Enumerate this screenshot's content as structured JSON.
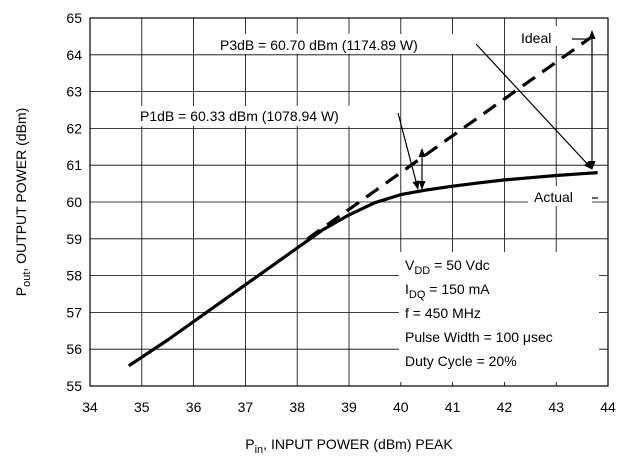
{
  "chart_data": {
    "type": "line",
    "xlabel": {
      "main": "P",
      "sub": "in",
      "rest": ", INPUT POWER (dBm) PEAK"
    },
    "ylabel": {
      "main": "P",
      "sub": "out",
      "rest": ", OUTPUT POWER (dBm)"
    },
    "xlim": [
      34,
      44
    ],
    "ylim": [
      55,
      65
    ],
    "xticks": [
      "34",
      "35",
      "36",
      "37",
      "38",
      "39",
      "40",
      "41",
      "42",
      "43",
      "44"
    ],
    "yticks": [
      "55",
      "56",
      "57",
      "58",
      "59",
      "60",
      "61",
      "62",
      "63",
      "64",
      "65"
    ],
    "grid": true,
    "series": [
      {
        "name": "Actual",
        "style": "solid",
        "color": "#000000",
        "x": [
          34.75,
          35.5,
          36.3,
          37.1,
          37.9,
          38.5,
          39.0,
          39.5,
          40.0,
          40.5,
          41.0,
          41.5,
          42.0,
          42.5,
          43.0,
          43.5,
          43.8
        ],
        "y": [
          55.55,
          56.25,
          57.05,
          57.85,
          58.65,
          59.25,
          59.65,
          59.98,
          60.2,
          60.33,
          60.43,
          60.52,
          60.6,
          60.66,
          60.72,
          60.77,
          60.8
        ]
      },
      {
        "name": "Ideal",
        "style": "dashed",
        "color": "#000000",
        "x": [
          38.2,
          43.8
        ],
        "y": [
          59.0,
          64.6
        ]
      }
    ],
    "annotations": {
      "p3db": "P3dB = 60.70 dBm (1174.89 W)",
      "p1db": "P1dB = 60.33 dBm (1078.94 W)",
      "ideal": "Ideal",
      "actual": "Actual",
      "conditions": [
        {
          "main": "V",
          "sub": "DD",
          "rest": " = 50 Vdc"
        },
        {
          "main": "I",
          "sub": "DQ",
          "rest": " = 150 mA"
        },
        {
          "main": "f = 450 MHz",
          "sub": "",
          "rest": ""
        },
        {
          "main": "Pulse Width = 100 μsec",
          "sub": "",
          "rest": ""
        },
        {
          "main": "Duty Cycle = 20%",
          "sub": "",
          "rest": ""
        }
      ]
    }
  }
}
